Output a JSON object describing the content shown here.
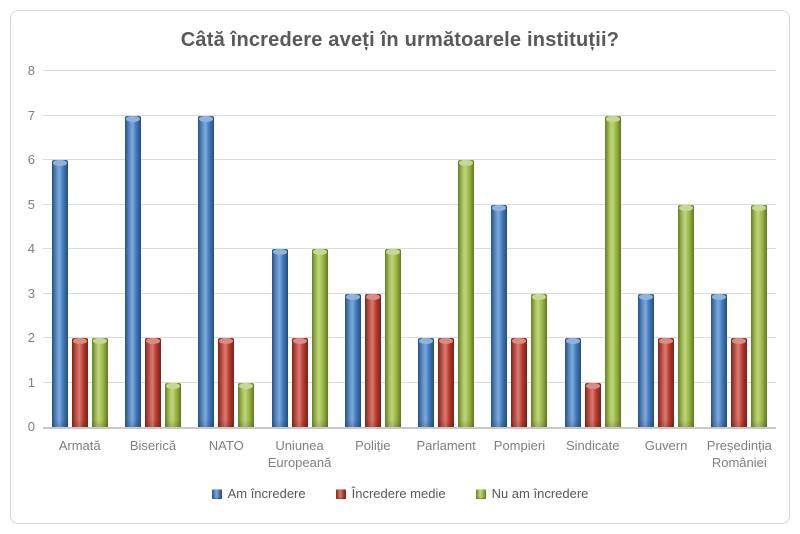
{
  "chart_data": {
    "type": "bar",
    "title": "Câtă încredere aveți în următoarele instituții?",
    "categories": [
      "Armată",
      "Biserică",
      "NATO",
      "Uniunea Europeană",
      "Poliție",
      "Parlament",
      "Pompieri",
      "Sindicate",
      "Guvern",
      "Președinția României"
    ],
    "series": [
      {
        "name": "Am încredere",
        "color": "#3f7cc4",
        "values": [
          6,
          7,
          7,
          4,
          3,
          2,
          5,
          2,
          3,
          3
        ]
      },
      {
        "name": "Încredere medie",
        "color": "#c0392b",
        "values": [
          2,
          2,
          2,
          2,
          3,
          2,
          2,
          1,
          2,
          2
        ]
      },
      {
        "name": "Nu am încredere",
        "color": "#9cbd3f",
        "values": [
          2,
          1,
          1,
          4,
          4,
          6,
          3,
          7,
          5,
          5
        ]
      }
    ],
    "xlabel": "",
    "ylabel": "",
    "ylim": [
      0,
      8
    ],
    "yticks": [
      0,
      1,
      2,
      3,
      4,
      5,
      6,
      7,
      8
    ],
    "grid": true,
    "legend_position": "bottom"
  },
  "style_colors": {
    "title_text": "#595959",
    "axis_text": "#7f7f7f",
    "gridline": "#dcdcdc",
    "frame_border": "#d8d8d8",
    "background": "#ffffff"
  }
}
